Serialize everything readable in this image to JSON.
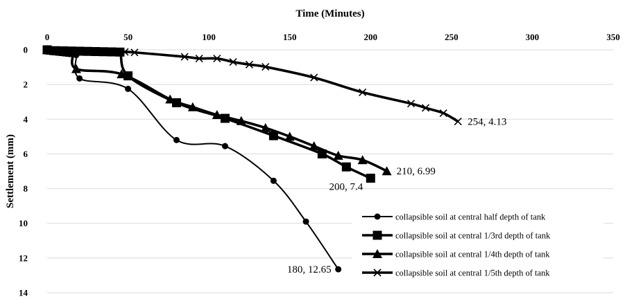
{
  "chart_data": {
    "type": "scatter",
    "xlabel": "Time (Minutes)",
    "ylabel": "Settlement (mm)",
    "xlim": [
      0,
      350
    ],
    "ylim": [
      0,
      14
    ],
    "x_axis_position": "top",
    "y_axis_inverted": true,
    "xticks": [
      "0",
      "50",
      "100",
      "150",
      "200",
      "250",
      "300",
      "350"
    ],
    "yticks": [
      "0",
      "2",
      "4",
      "6",
      "8",
      "10",
      "12",
      "14"
    ],
    "grid": "horizontal",
    "legend_position": "bottom-right",
    "series": [
      {
        "name": "collapsible soil at central half depth of tank",
        "marker": "circle",
        "x": [
          0,
          2,
          5,
          8,
          10,
          12,
          14,
          16,
          18,
          20,
          50,
          80,
          110,
          140,
          160,
          180
        ],
        "y": [
          0,
          0.05,
          0.08,
          0.1,
          0.12,
          0.15,
          0.2,
          0.25,
          0.3,
          1.65,
          2.25,
          5.2,
          5.55,
          7.55,
          9.9,
          12.65
        ]
      },
      {
        "name": "collapsible soil at central 1/3rd depth of tank",
        "marker": "square",
        "x": [
          0,
          5,
          10,
          15,
          20,
          25,
          30,
          35,
          40,
          45,
          50,
          80,
          110,
          140,
          170,
          185,
          200
        ],
        "y": [
          0,
          0.05,
          0.06,
          0.07,
          0.08,
          0.09,
          0.1,
          0.11,
          0.12,
          0.13,
          1.5,
          3.05,
          3.95,
          4.95,
          6.0,
          6.75,
          7.4
        ]
      },
      {
        "name": "collapsible soil at central 1/4th depth of tank",
        "marker": "triangle",
        "x": [
          0,
          2,
          4,
          6,
          8,
          10,
          12,
          14,
          16,
          18,
          46,
          76,
          90,
          105,
          120,
          135,
          150,
          165,
          180,
          195,
          210
        ],
        "y": [
          0,
          0.04,
          0.06,
          0.08,
          0.1,
          0.12,
          0.14,
          0.16,
          0.18,
          1.1,
          1.4,
          2.85,
          3.3,
          3.75,
          4.1,
          4.5,
          5.0,
          5.55,
          6.1,
          6.35,
          6.99
        ]
      },
      {
        "name": "collapsible soil at central 1/5th depth of tank",
        "marker": "x",
        "x": [
          0,
          4,
          8,
          12,
          16,
          20,
          24,
          28,
          32,
          36,
          40,
          44,
          48,
          54,
          85,
          94,
          105,
          115,
          125,
          135,
          165,
          195,
          225,
          234,
          245,
          254
        ],
        "y": [
          0,
          0.02,
          0.03,
          0.04,
          0.05,
          0.06,
          0.07,
          0.08,
          0.08,
          0.09,
          0.1,
          0.11,
          0.12,
          0.15,
          0.4,
          0.5,
          0.5,
          0.7,
          0.85,
          0.98,
          1.6,
          2.45,
          3.1,
          3.35,
          3.65,
          4.13
        ]
      }
    ],
    "annotations": [
      {
        "text": "254, 4.13",
        "x": 254,
        "y": 4.13,
        "anchor": "right"
      },
      {
        "text": "210, 6.99",
        "x": 210,
        "y": 6.99,
        "anchor": "right"
      },
      {
        "text": "200, 7.4",
        "x": 200,
        "y": 7.4,
        "anchor": "below-left"
      },
      {
        "text": "180, 12.65",
        "x": 180,
        "y": 12.65,
        "anchor": "left"
      }
    ]
  }
}
